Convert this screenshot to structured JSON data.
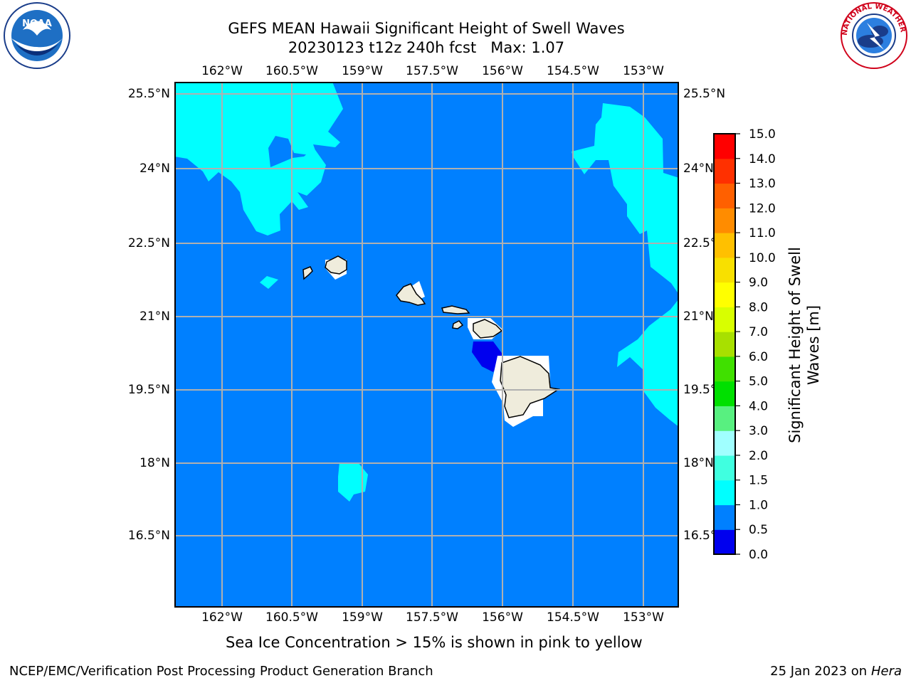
{
  "title": {
    "line1": "GEFS MEAN Hawaii Significant Height of Swell Waves",
    "line2": "20230123 t12z 240h fcst   Max: 1.07"
  },
  "axes": {
    "lon_labels": [
      "162°W",
      "160.5°W",
      "159°W",
      "157.5°W",
      "156°W",
      "154.5°W",
      "153°W"
    ],
    "lat_labels": [
      "25.5°N",
      "24°N",
      "22.5°N",
      "21°N",
      "19.5°N",
      "18°N",
      "16.5°N"
    ]
  },
  "colorbar": {
    "label_line1": "Significant Height of Swell",
    "label_line2": "Waves [m]",
    "ticks": [
      "0.0",
      "0.5",
      "1.0",
      "1.5",
      "2.0",
      "3.0",
      "4.0",
      "5.0",
      "6.0",
      "7.0",
      "8.0",
      "9.0",
      "10.0",
      "11.0",
      "12.0",
      "13.0",
      "14.0",
      "15.0"
    ],
    "colors": [
      "#0000ee",
      "#0080ff",
      "#00ffff",
      "#40ffe0",
      "#a0ffff",
      "#58f080",
      "#00e000",
      "#40e000",
      "#a8e000",
      "#d8ff00",
      "#ffff00",
      "#f8e000",
      "#ffc000",
      "#ff8c00",
      "#ff6000",
      "#ff3000",
      "#ff0000"
    ]
  },
  "map_colors": {
    "ocean": "#0080ff",
    "swell_1_15": "#00ffff",
    "swell_0_05": "#0000ee",
    "land": "#efecdc"
  },
  "note": "Sea Ice Concentration > 15% is shown in pink to yellow",
  "footer": {
    "left": "NCEP/EMC/Verification Post Processing Product Generation Branch",
    "right_prefix": "25 Jan 2023 on ",
    "right_italic": "Hera"
  },
  "logos": {
    "noaa": "NOAA",
    "nws": "NATIONAL WEATHER SERVICE"
  }
}
